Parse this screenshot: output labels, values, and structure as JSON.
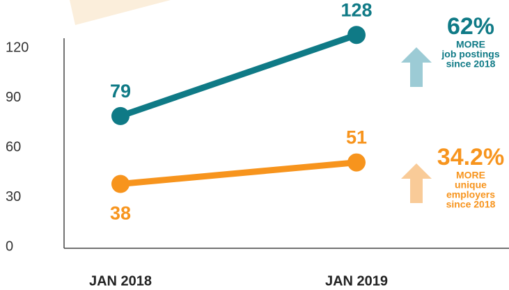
{
  "chart_data": {
    "type": "line",
    "categories": [
      "JAN 2018",
      "JAN 2019"
    ],
    "series": [
      {
        "name": "job postings",
        "color": "#0f7a86",
        "values": [
          79,
          128
        ]
      },
      {
        "name": "unique employers",
        "color": "#f7941d",
        "values": [
          38,
          51
        ]
      }
    ],
    "ylim": [
      0,
      126
    ],
    "yticks": [
      0,
      30,
      60,
      90,
      120
    ],
    "annotations": [
      {
        "lines": [
          "62%",
          "MORE",
          "job postings",
          "since 2018"
        ],
        "arrow_color": "#9ccbd5"
      },
      {
        "lines": [
          "34.2%",
          "MORE",
          "unique",
          "employers",
          "since 2018"
        ],
        "arrow_color": "#f9cb98"
      }
    ]
  }
}
